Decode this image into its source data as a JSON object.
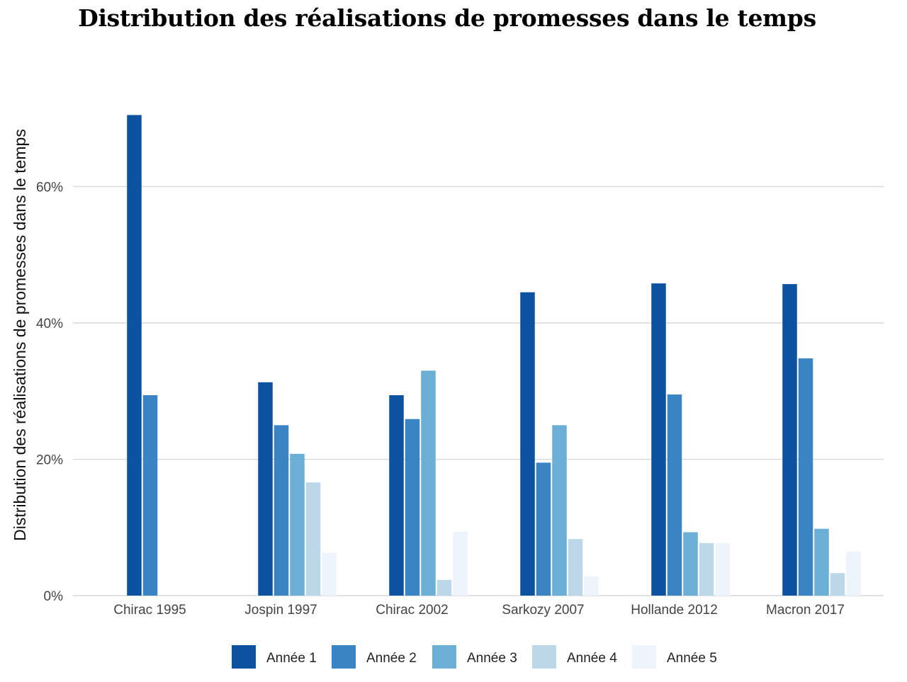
{
  "chart_data": {
    "type": "bar",
    "title": "Distribution des réalisations de promesses dans le temps",
    "xlabel": "",
    "ylabel": "Distribution des réalisations de promesses dans le temps",
    "ylim": [
      0,
      70
    ],
    "yticks": [
      0,
      20,
      40,
      60
    ],
    "ytick_labels": [
      "0%",
      "20%",
      "40%",
      "60%"
    ],
    "grid": "horizontal",
    "legend_position": "bottom",
    "categories": [
      "Chirac 1995",
      "Jospin 1997",
      "Chirac 2002",
      "Sarkozy 2007",
      "Hollande 2012",
      "Macron 2017"
    ],
    "series": [
      {
        "name": "Année 1",
        "color": "#0c52a0",
        "values": [
          70.5,
          31.3,
          29.4,
          44.5,
          45.8,
          45.7
        ]
      },
      {
        "name": "Année 2",
        "color": "#3b84c4",
        "values": [
          29.4,
          25.0,
          25.9,
          19.5,
          29.5,
          34.8
        ]
      },
      {
        "name": "Année 3",
        "color": "#6baed6",
        "values": [
          0,
          20.8,
          33.0,
          25.0,
          9.3,
          9.8
        ]
      },
      {
        "name": "Année 4",
        "color": "#bcd7e8",
        "values": [
          0,
          16.6,
          2.3,
          8.3,
          7.7,
          3.3
        ]
      },
      {
        "name": "Année 5",
        "color": "#eef4fb",
        "values": [
          0,
          6.3,
          9.4,
          2.8,
          7.7,
          6.5
        ]
      }
    ]
  }
}
